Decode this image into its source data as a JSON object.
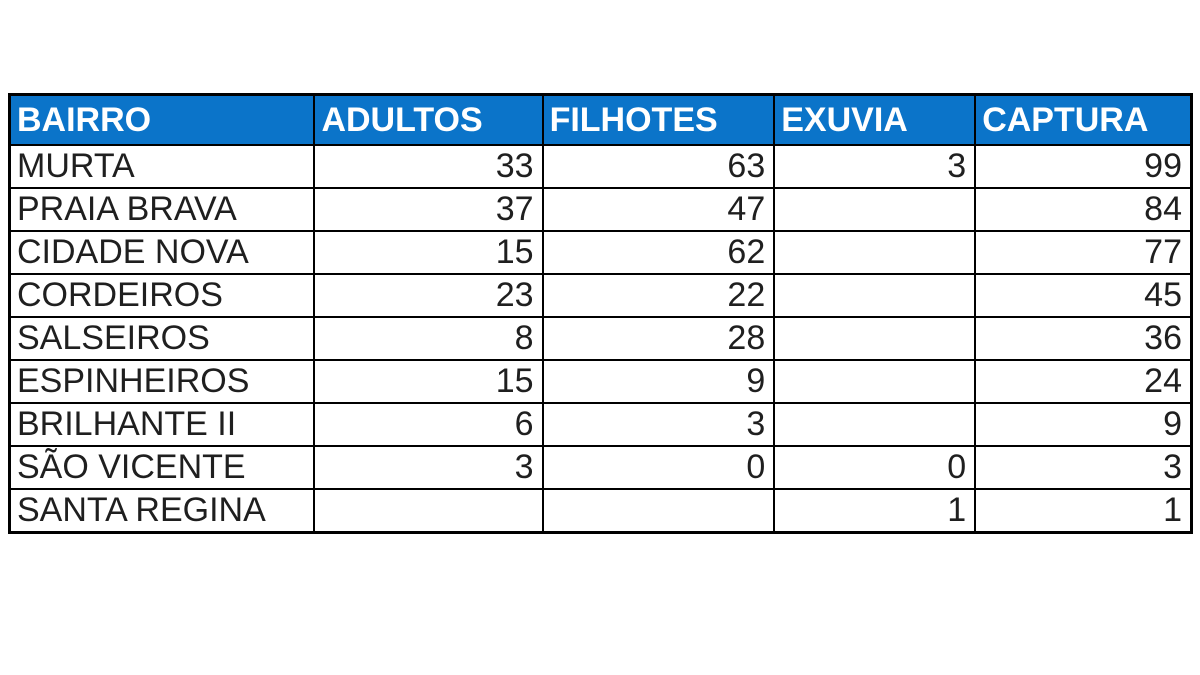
{
  "colors": {
    "header_bg": "#0b74c9",
    "header_text": "#ffffff",
    "cell_text": "#1f1f1f",
    "border": "#000000",
    "page_background": "#ffffff"
  },
  "chart_data": {
    "type": "table",
    "title": "",
    "columns": [
      "BAIRRO",
      "ADULTOS",
      "FILHOTES",
      "EXUVIA",
      "CAPTURA"
    ],
    "rows": [
      [
        "MURTA",
        "33",
        "63",
        "3",
        "99"
      ],
      [
        "PRAIA BRAVA",
        "37",
        "47",
        "",
        "84"
      ],
      [
        "CIDADE NOVA",
        "15",
        "62",
        "",
        "77"
      ],
      [
        "CORDEIROS",
        "23",
        "22",
        "",
        "45"
      ],
      [
        "SALSEIROS",
        "8",
        "28",
        "",
        "36"
      ],
      [
        "ESPINHEIROS",
        "15",
        "9",
        "",
        "24"
      ],
      [
        "BRILHANTE II",
        "6",
        "3",
        "",
        "9"
      ],
      [
        "SÃO VICENTE",
        "3",
        "0",
        "0",
        "3"
      ],
      [
        "SANTA REGINA",
        "",
        "",
        "1",
        "1"
      ]
    ]
  }
}
